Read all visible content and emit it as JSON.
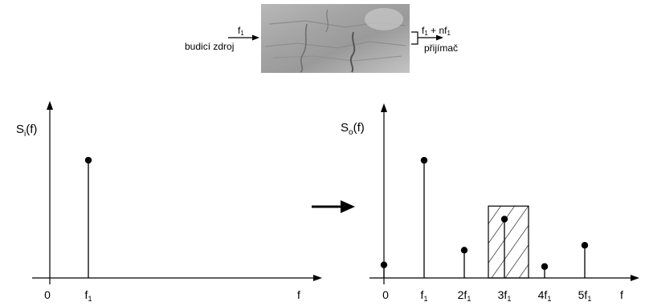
{
  "top": {
    "input_freq": "f",
    "input_freq_sub": "1",
    "input_label": "budicí zdroj",
    "output_freq_a": "f",
    "output_freq_a_sub": "1",
    "output_freq_mid": " + nf",
    "output_freq_b_sub": "1",
    "output_label": "přijímač"
  },
  "chart_data": [
    {
      "type": "stem",
      "ylabel": "S",
      "ylabel_sub": "i",
      "ylabel_tail": "(f)",
      "xlabel": "f",
      "origin_label": "0",
      "ticks": [
        {
          "main": "f",
          "sub": "1",
          "x": 1
        }
      ],
      "points": [
        {
          "x": 1,
          "y": 0.71
        }
      ],
      "xlim": [
        0,
        6
      ],
      "ylim": [
        0,
        1
      ]
    },
    {
      "type": "stem",
      "ylabel": "S",
      "ylabel_sub": "o",
      "ylabel_tail": "(f)",
      "xlabel": "f",
      "origin_label": "0",
      "ticks": [
        {
          "main": "f",
          "sub": "1",
          "x": 1
        },
        {
          "main": "2f",
          "sub": "1",
          "x": 2
        },
        {
          "main": "3f",
          "sub": "1",
          "x": 3
        },
        {
          "main": "4f",
          "sub": "1",
          "x": 4
        },
        {
          "main": "5f",
          "sub": "1",
          "x": 5
        }
      ],
      "points": [
        {
          "x": 0,
          "y": 0.08
        },
        {
          "x": 1,
          "y": 0.72
        },
        {
          "x": 2,
          "y": 0.17
        },
        {
          "x": 3,
          "y": 0.36
        },
        {
          "x": 4,
          "y": 0.07
        },
        {
          "x": 5,
          "y": 0.2
        }
      ],
      "filter_band": {
        "from": 2.6,
        "to": 3.6,
        "height": 0.44
      },
      "xlim": [
        0,
        6.5
      ],
      "ylim": [
        0,
        1
      ]
    }
  ]
}
